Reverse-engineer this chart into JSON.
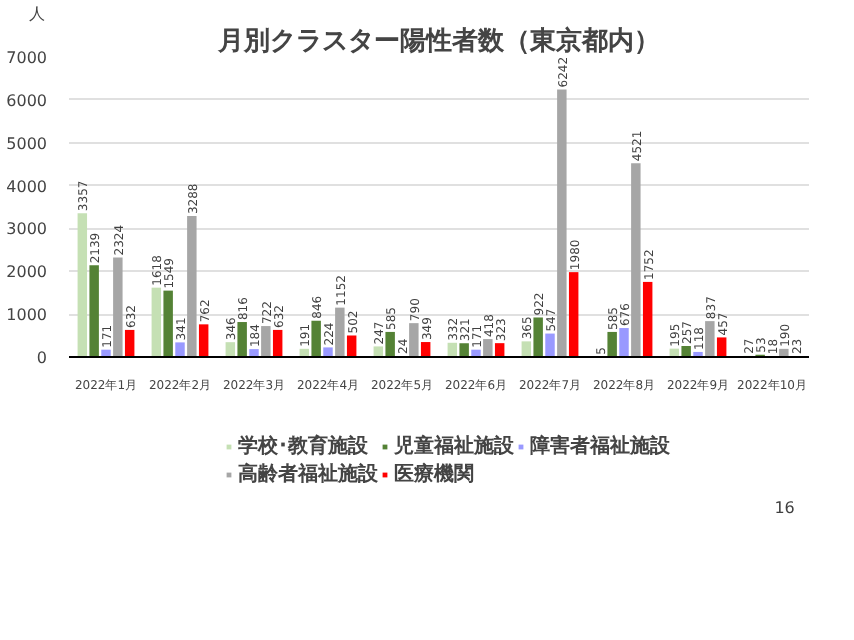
{
  "chart_data": {
    "type": "bar",
    "title": "月別クラスター陽性者数（東京都内）",
    "ylabel": "人",
    "categories": [
      "2022年1月",
      "2022年2月",
      "2022年3月",
      "2022年4月",
      "2022年5月",
      "2022年6月",
      "2022年7月",
      "2022年8月",
      "2022年9月",
      "2022年10月"
    ],
    "series": [
      {
        "name": "学校･教育施設",
        "color": "#c5e0b4",
        "values": [
          3357,
          1618,
          346,
          191,
          247,
          332,
          365,
          5,
          195,
          27
        ]
      },
      {
        "name": "児童福祉施設",
        "color": "#548235",
        "values": [
          2139,
          1549,
          816,
          846,
          585,
          321,
          922,
          585,
          257,
          53
        ]
      },
      {
        "name": "障害者福祉施設",
        "color": "#9999ff",
        "values": [
          171,
          341,
          184,
          224,
          24,
          171,
          547,
          676,
          118,
          18
        ]
      },
      {
        "name": "高齢者福祉施設",
        "color": "#a6a6a6",
        "values": [
          2324,
          3288,
          722,
          1152,
          790,
          418,
          6242,
          4521,
          837,
          190
        ]
      },
      {
        "name": "医療機関",
        "color": "#ff0000",
        "values": [
          632,
          762,
          632,
          502,
          349,
          323,
          1980,
          1752,
          457,
          23
        ]
      }
    ],
    "ylim": [
      0,
      7000
    ],
    "yticks": [
      0,
      1000,
      2000,
      3000,
      4000,
      5000,
      6000,
      7000
    ],
    "grid": "y",
    "legend": "bottom",
    "data_labels": true,
    "annotations": [
      "16"
    ]
  }
}
